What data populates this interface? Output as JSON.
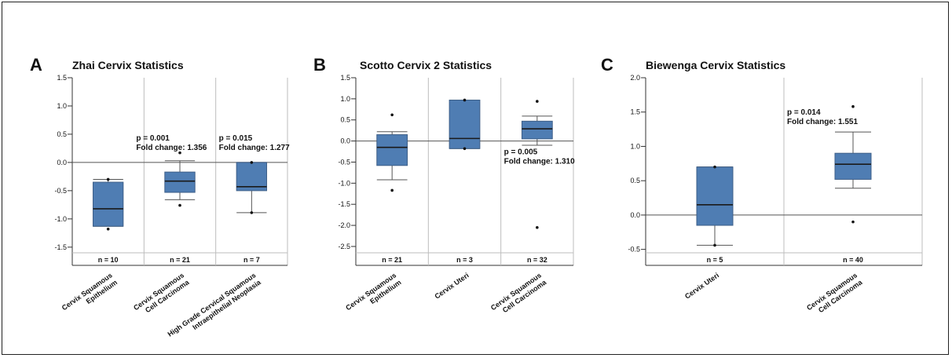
{
  "colors": {
    "box": "#4f7db3",
    "box_stroke": "#3e5f88",
    "axis": "#333333",
    "grid": "#bdbdbd",
    "text": "#111111"
  },
  "chart_data": [
    {
      "type": "box",
      "panel_label": "A",
      "title": "Zhai Cervix Statistics",
      "ylim": [
        -1.6,
        1.5
      ],
      "ticks": [
        1.5,
        1.0,
        0.5,
        0.0,
        -0.5,
        -1.0,
        -1.5
      ],
      "tick_labels": [
        "1.5",
        "1.0",
        "0.5",
        "0.0",
        "-0.5",
        "-1.0",
        "-1.5"
      ],
      "categories": [
        "Cervix Squamous Epithelium",
        "Cervix Squamous Cell Carcinoma",
        "High Grade Cervical Squamous Intraepithelial Neoplasia"
      ],
      "category_lines": [
        [
          "Cervix Squamous",
          "Epithelium"
        ],
        [
          "Cervix Squamous",
          "Cell Carcinoma"
        ],
        [
          "High Grade Cervical Squamous",
          "Intraepithelial Neoplasia"
        ]
      ],
      "n_labels": [
        "n = 10",
        "n = 21",
        "n = 7"
      ],
      "boxes": [
        {
          "min": -1.13,
          "q1": -1.13,
          "median": -0.82,
          "q3": -0.35,
          "max": -0.3,
          "outliers": [
            -0.3,
            -1.18
          ]
        },
        {
          "min": -0.66,
          "q1": -0.53,
          "median": -0.33,
          "q3": -0.17,
          "max": 0.03,
          "outliers": [
            0.17,
            -0.76
          ]
        },
        {
          "min": -0.89,
          "q1": -0.5,
          "median": -0.43,
          "q3": 0.0,
          "max": 0.0,
          "outliers": [
            0.0,
            -0.89
          ]
        }
      ],
      "annotations": [
        {
          "category": 1,
          "y": 0.39,
          "lines": [
            "p = 0.001",
            "Fold change: 1.356"
          ]
        },
        {
          "category": 2,
          "y": 0.39,
          "lines": [
            "p = 0.015",
            "Fold change: 1.277"
          ]
        }
      ]
    },
    {
      "type": "box",
      "panel_label": "B",
      "title": "Scotto Cervix 2 Statistics",
      "ylim": [
        -2.65,
        1.5
      ],
      "ticks": [
        1.5,
        1.0,
        0.5,
        0.0,
        -0.5,
        -1.0,
        -1.5,
        -2.0,
        -2.5
      ],
      "tick_labels": [
        "1.5",
        "1.0",
        "0.5",
        "0.0",
        "-0.5",
        "-1.0",
        "-1.5",
        "-2.0",
        "-2.5"
      ],
      "categories": [
        "Cervix Squamous Epithelium",
        "Cervix Uteri",
        "Cervix Squamous Cell Carcinoma"
      ],
      "category_lines": [
        [
          "Cervix Squamous",
          "Epithelium"
        ],
        [
          "Cervix Uteri"
        ],
        [
          "Cervix Squamous",
          "Cell Carcinoma"
        ]
      ],
      "n_labels": [
        "n = 21",
        "n = 3",
        "n = 32"
      ],
      "boxes": [
        {
          "min": -0.92,
          "q1": -0.58,
          "median": -0.15,
          "q3": 0.15,
          "max": 0.22,
          "outliers": [
            0.62,
            -1.17
          ]
        },
        {
          "min": -0.18,
          "q1": -0.18,
          "median": 0.06,
          "q3": 0.97,
          "max": 0.97,
          "outliers": [
            0.97,
            -0.18
          ]
        },
        {
          "min": -0.1,
          "q1": 0.05,
          "median": 0.29,
          "q3": 0.47,
          "max": 0.59,
          "outliers": [
            0.94,
            -2.05
          ]
        }
      ],
      "annotations": [
        {
          "category": 2,
          "y": -0.31,
          "lines": [
            "p = 0.005",
            "Fold change: 1.310"
          ]
        }
      ]
    },
    {
      "type": "box",
      "panel_label": "C",
      "title": "Biewenga Cervix Statistics",
      "ylim": [
        -0.55,
        2.0
      ],
      "ticks": [
        2.0,
        1.5,
        1.0,
        0.5,
        0.0,
        -0.5
      ],
      "tick_labels": [
        "2.0",
        "1.5",
        "1.0",
        "0.5",
        "0.0",
        "-0.5"
      ],
      "categories": [
        "Cervix Uteri",
        "Cervix Squamous Cell Carcinoma"
      ],
      "category_lines": [
        [
          "Cervix Uteri"
        ],
        [
          "Cervix Squamous",
          "Cell Carcinoma"
        ]
      ],
      "n_labels": [
        "n = 5",
        "n = 40"
      ],
      "boxes": [
        {
          "min": -0.44,
          "q1": -0.15,
          "median": 0.15,
          "q3": 0.7,
          "max": 0.7,
          "outliers": [
            0.7,
            -0.44
          ]
        },
        {
          "min": 0.39,
          "q1": 0.52,
          "median": 0.74,
          "q3": 0.9,
          "max": 1.21,
          "outliers": [
            1.58,
            -0.1
          ]
        }
      ],
      "annotations": [
        {
          "category": 1,
          "y": 1.46,
          "lines": [
            "p = 0.014",
            "Fold change: 1.551"
          ]
        }
      ]
    }
  ]
}
